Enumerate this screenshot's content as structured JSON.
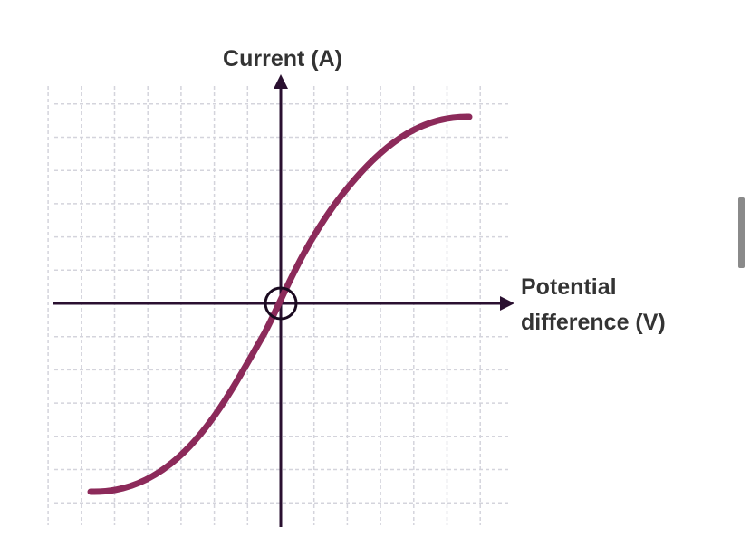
{
  "axes": {
    "y_label": "Current (A)",
    "x_label_lines": [
      "Potential",
      "difference (V)"
    ]
  }
}
